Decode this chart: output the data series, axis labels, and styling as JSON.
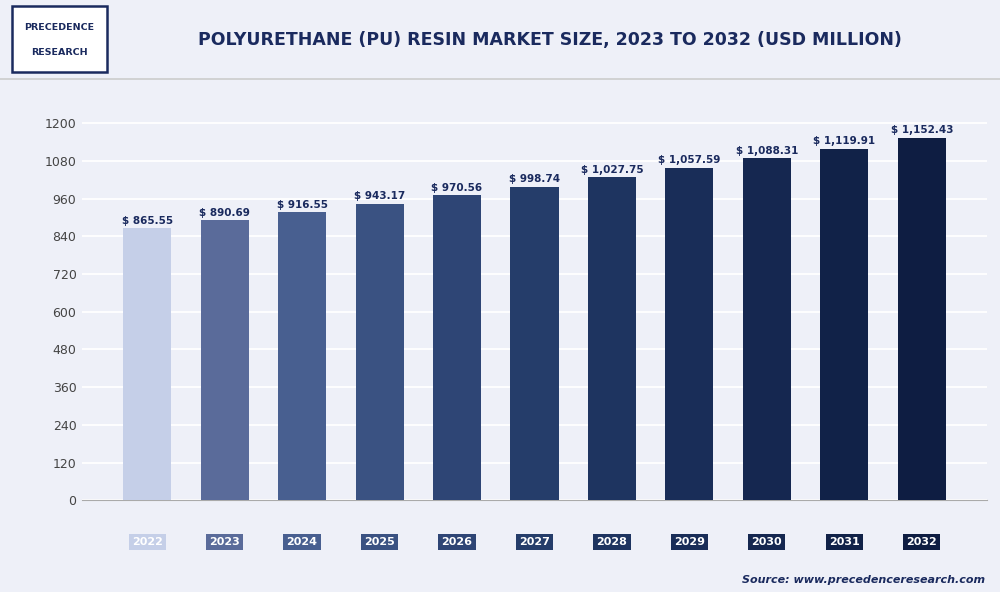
{
  "title": "POLYURETHANE (PU) RESIN MARKET SIZE, 2023 TO 2032 (USD MILLION)",
  "categories": [
    "2022",
    "2023",
    "2024",
    "2025",
    "2026",
    "2027",
    "2028",
    "2029",
    "2030",
    "2031",
    "2032"
  ],
  "values": [
    865.55,
    890.69,
    916.55,
    943.17,
    970.56,
    998.74,
    1027.75,
    1057.59,
    1088.31,
    1119.91,
    1152.43
  ],
  "bar_colors": [
    "#c5cfe8",
    "#5a6b9a",
    "#485f90",
    "#3a5282",
    "#2e4575",
    "#253d6a",
    "#1e3460",
    "#192d58",
    "#152750",
    "#112248",
    "#0e1d42"
  ],
  "value_labels": [
    "$ 865.55",
    "$ 890.69",
    "$ 916.55",
    "$ 943.17",
    "$ 970.56",
    "$ 998.74",
    "$ 1,027.75",
    "$ 1,057.59",
    "$ 1,088.31",
    "$ 1,119.91",
    "$ 1,152.43"
  ],
  "yticks": [
    0,
    120,
    240,
    360,
    480,
    600,
    720,
    840,
    960,
    1080,
    1200
  ],
  "ylim": [
    0,
    1310
  ],
  "background_color": "#eef0f8",
  "plot_bg_color": "#eef0f8",
  "grid_color": "#ffffff",
  "title_color": "#1a2a5e",
  "source_text": "Source: www.precedenceresearch.com",
  "source_color": "#1a2a5e",
  "logo_text1": "PRECEDENCE",
  "logo_text2": "RESEARCH",
  "bar_width": 0.62,
  "header_bg": "#ffffff",
  "separator_color": "#cccccc"
}
